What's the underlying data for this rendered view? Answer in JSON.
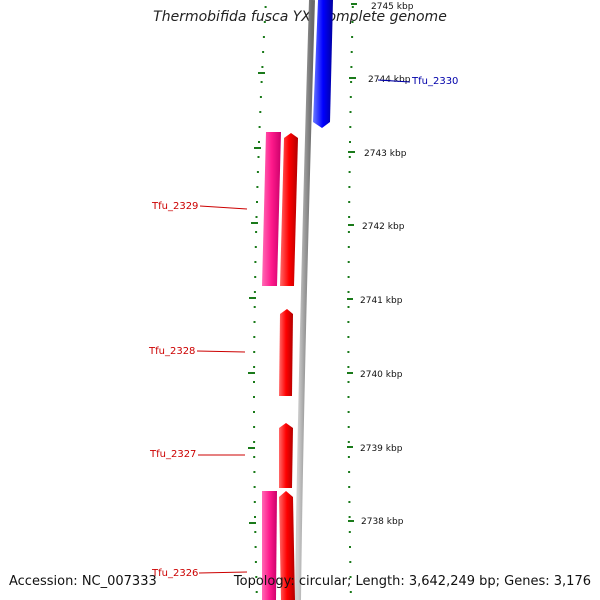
{
  "title": "Thermobifida fusca YX, complete genome",
  "footer": {
    "accession": "Accession: NC_007333",
    "summary": "Topology: circular; Length: 3,642,249 bp; Genes: 3,176"
  },
  "colors": {
    "forward_cds": "#ff0000",
    "reverse_cds": "#0000ff",
    "gene_feature": "#ff1a8c",
    "backbone": "#999999",
    "tick": "#1a7a1a",
    "forward_label": "#cc0000",
    "reverse_label": "#0000aa"
  },
  "ticks": [
    "2745 kbp",
    "2744 kbp",
    "2743 kbp",
    "2742 kbp",
    "2741 kbp",
    "2740 kbp",
    "2739 kbp",
    "2738 kbp"
  ],
  "genes": [
    {
      "name": "Tfu_2330",
      "strand": "reverse"
    },
    {
      "name": "Tfu_2329",
      "strand": "forward"
    },
    {
      "name": "Tfu_2328",
      "strand": "forward"
    },
    {
      "name": "Tfu_2327",
      "strand": "forward"
    },
    {
      "name": "Tfu_2326",
      "strand": "forward"
    }
  ]
}
